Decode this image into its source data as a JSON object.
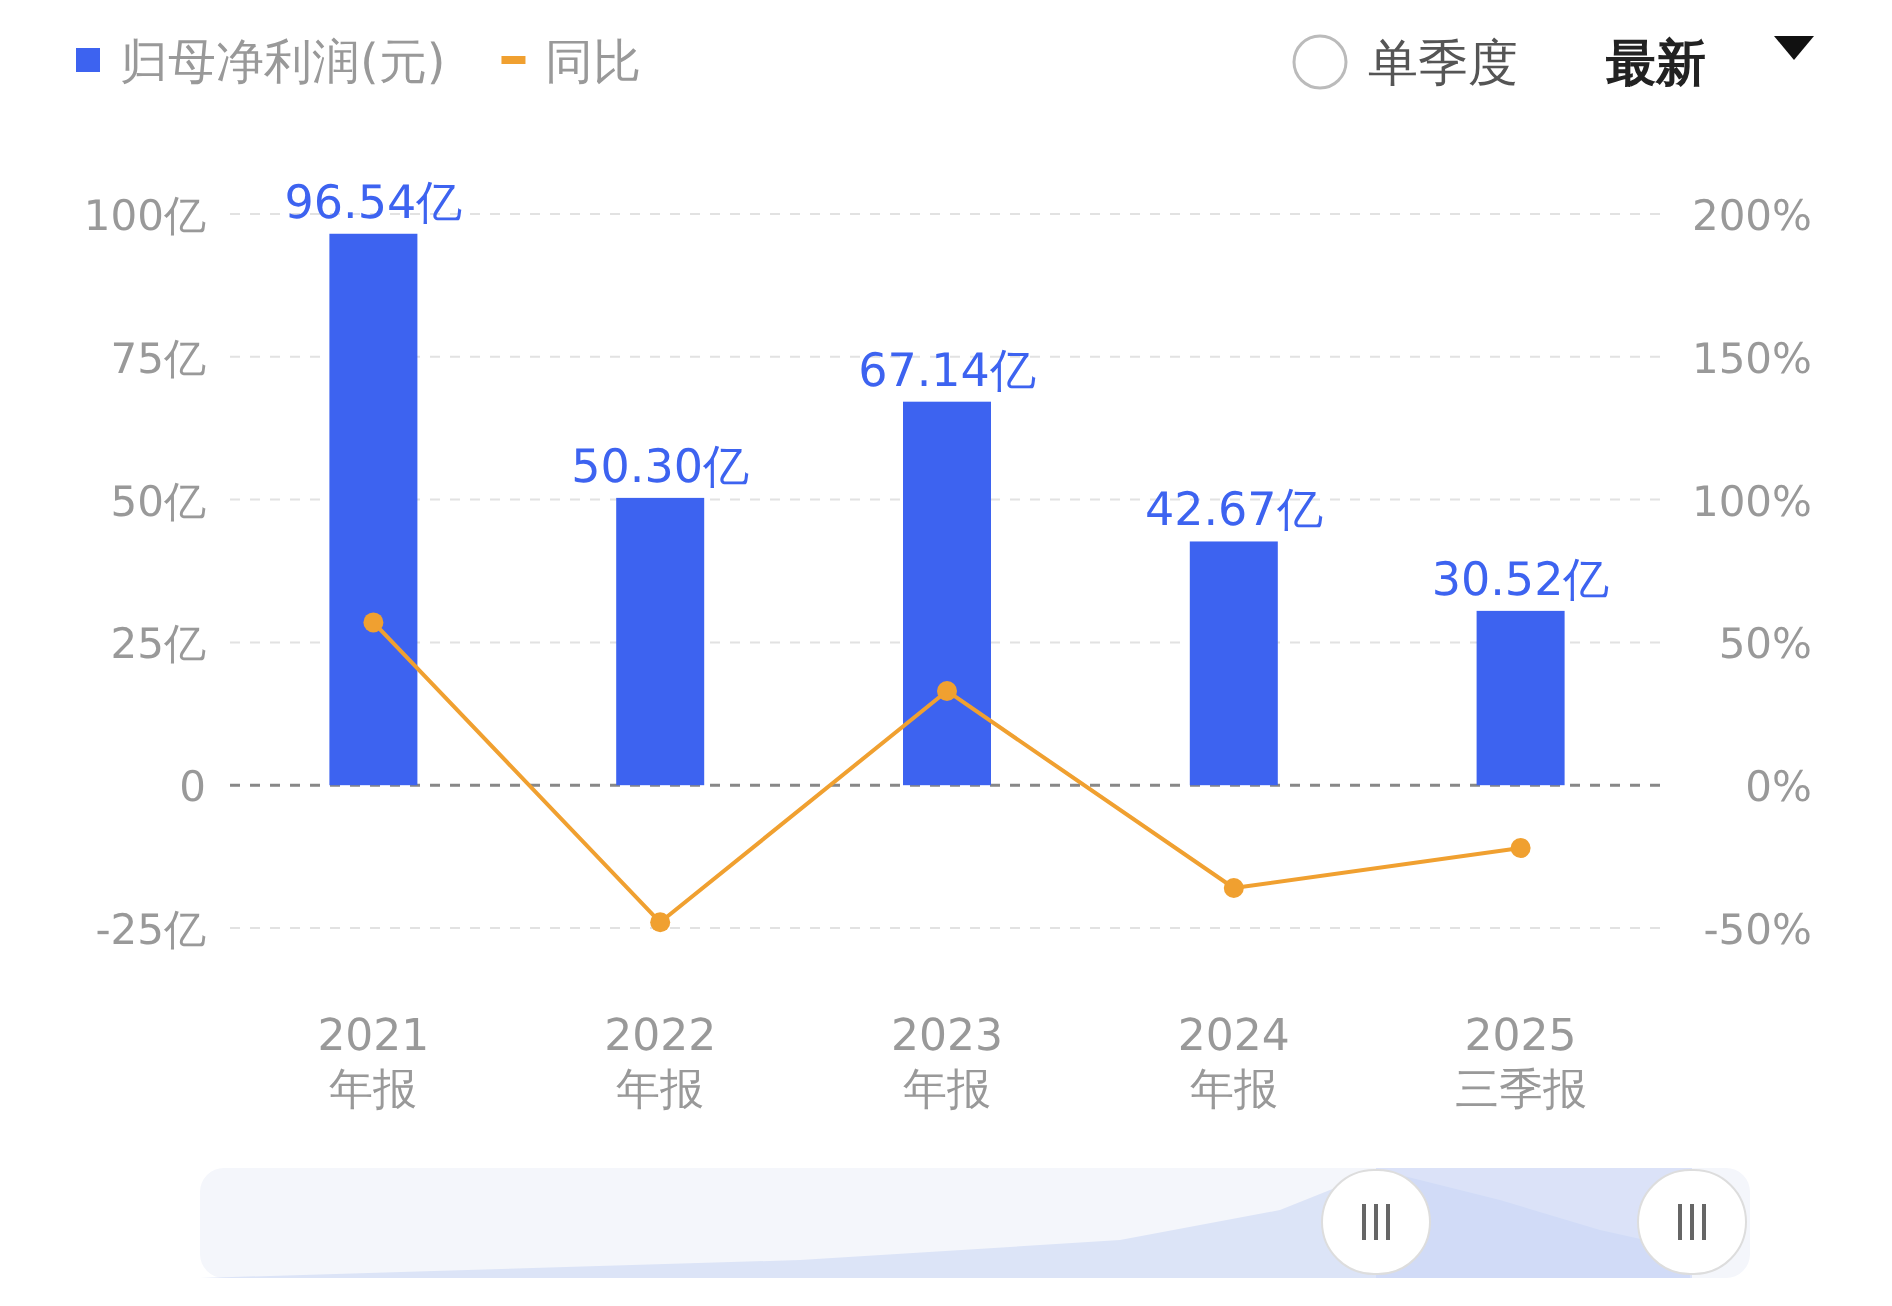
{
  "chart_data": {
    "type": "bar",
    "categories": [
      "2021\n年报",
      "2022\n年报",
      "2023\n年报",
      "2024\n年报",
      "2025\n三季报"
    ],
    "series": [
      {
        "name": "归母净利润(元)",
        "color": "#3d63f0",
        "values": [
          96.54,
          50.3,
          67.14,
          42.67,
          30.52
        ],
        "value_labels": [
          "96.54亿",
          "50.30亿",
          "67.14亿",
          "42.67亿",
          "30.52亿"
        ]
      },
      {
        "name": "同比",
        "type": "line",
        "axis": "y2",
        "color": "#f0a030",
        "marker": "circle",
        "values": [
          57,
          -48,
          33,
          -36,
          -22
        ]
      }
    ],
    "ylim": [
      -25,
      100
    ],
    "yticks": [
      {
        "value": -25,
        "label": "-25亿"
      },
      0,
      {
        "value": 25,
        "label": "25亿"
      },
      {
        "value": 50,
        "label": "50亿"
      },
      {
        "value": 75,
        "label": "75亿"
      },
      {
        "value": 100,
        "label": "100亿"
      }
    ],
    "y2lim": [
      -50,
      200
    ],
    "y2ticks": [
      {
        "value": -50,
        "label": "-50%"
      },
      {
        "value": 0,
        "label": "0%"
      },
      {
        "value": 50,
        "label": "50%"
      },
      {
        "value": 100,
        "label": "100%"
      },
      {
        "value": 150,
        "label": "150%"
      },
      {
        "value": 200,
        "label": "200%"
      }
    ],
    "grid": "y",
    "ref_lines": [
      {
        "axis": "y",
        "value": 0,
        "color": "#888888",
        "line_style": "dashed"
      }
    ],
    "legend": "top left",
    "annotations": [
      "单季度",
      "最新"
    ]
  }
}
